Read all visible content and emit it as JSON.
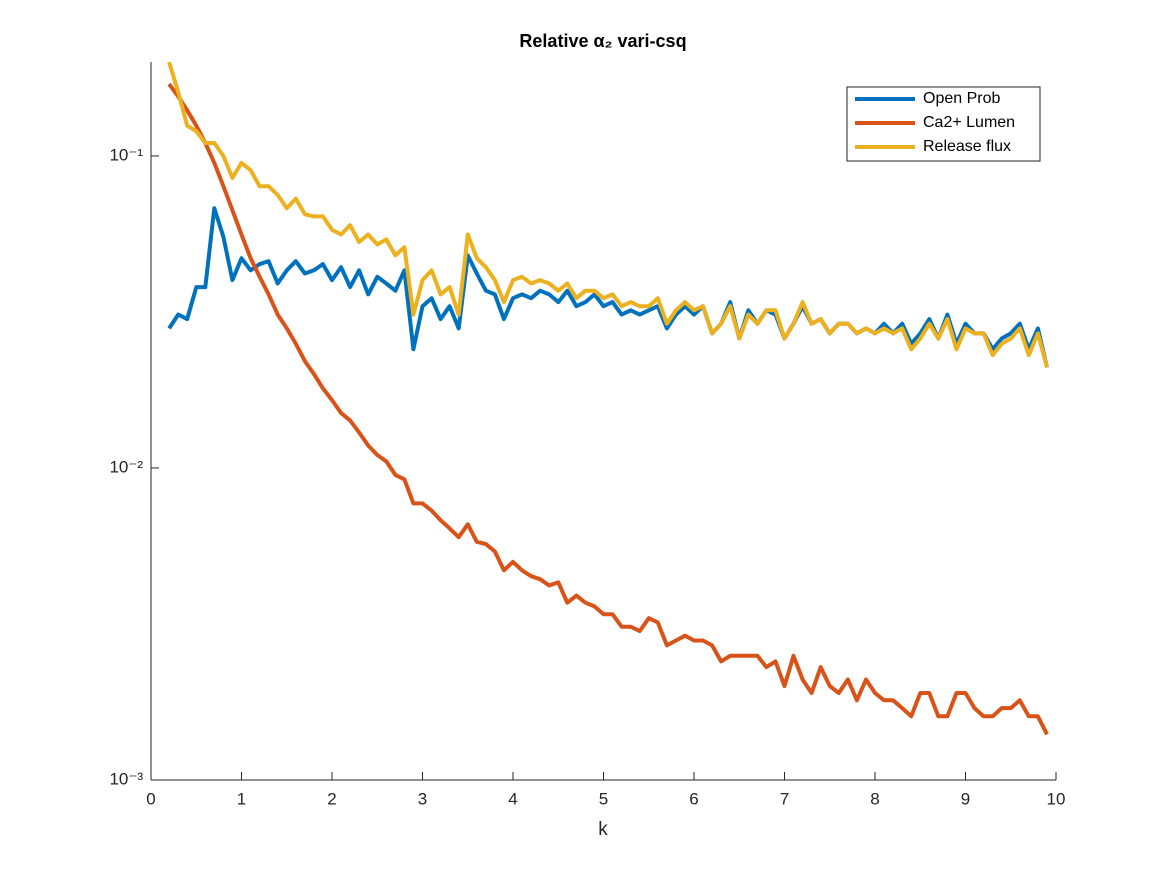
{
  "chart_data": {
    "type": "line",
    "title": "Relative α₂ vari-csq",
    "xlabel": "k",
    "x": [
      0.2,
      0.3,
      0.4,
      0.5,
      0.6,
      0.7,
      0.8,
      0.9,
      1.0,
      1.1,
      1.2,
      1.3,
      1.4,
      1.5,
      1.6,
      1.7,
      1.8,
      1.9,
      2.0,
      2.1,
      2.2,
      2.3,
      2.4,
      2.5,
      2.6,
      2.7,
      2.8,
      2.9,
      3.0,
      3.1,
      3.2,
      3.3,
      3.4,
      3.5,
      3.6,
      3.7,
      3.8,
      3.9,
      4.0,
      4.1,
      4.2,
      4.3,
      4.4,
      4.5,
      4.6,
      4.7,
      4.8,
      4.9,
      5.0,
      5.1,
      5.2,
      5.3,
      5.4,
      5.5,
      5.6,
      5.7,
      5.8,
      5.9,
      6.0,
      6.1,
      6.2,
      6.3,
      6.4,
      6.5,
      6.6,
      6.7,
      6.8,
      6.9,
      7.0,
      7.1,
      7.2,
      7.3,
      7.4,
      7.5,
      7.6,
      7.7,
      7.8,
      7.9,
      8.0,
      8.1,
      8.2,
      8.3,
      8.4,
      8.5,
      8.6,
      8.7,
      8.8,
      8.9,
      9.0,
      9.1,
      9.2,
      9.3,
      9.4,
      9.5,
      9.6,
      9.7,
      9.8,
      9.9
    ],
    "series": [
      {
        "name": "Open Prob",
        "color": "#0072BD",
        "values": [
          0.028,
          0.031,
          0.03,
          0.038,
          0.038,
          0.068,
          0.055,
          0.04,
          0.047,
          0.043,
          0.045,
          0.046,
          0.039,
          0.043,
          0.046,
          0.042,
          0.043,
          0.045,
          0.04,
          0.044,
          0.038,
          0.043,
          0.036,
          0.041,
          0.039,
          0.037,
          0.043,
          0.024,
          0.033,
          0.035,
          0.03,
          0.033,
          0.028,
          0.048,
          0.042,
          0.037,
          0.036,
          0.03,
          0.035,
          0.036,
          0.035,
          0.037,
          0.036,
          0.034,
          0.037,
          0.033,
          0.034,
          0.036,
          0.033,
          0.034,
          0.031,
          0.032,
          0.031,
          0.032,
          0.033,
          0.028,
          0.031,
          0.033,
          0.031,
          0.033,
          0.027,
          0.029,
          0.034,
          0.026,
          0.032,
          0.029,
          0.032,
          0.031,
          0.026,
          0.029,
          0.033,
          0.029,
          0.03,
          0.027,
          0.029,
          0.029,
          0.027,
          0.028,
          0.027,
          0.029,
          0.027,
          0.029,
          0.025,
          0.027,
          0.03,
          0.026,
          0.031,
          0.025,
          0.029,
          0.027,
          0.027,
          0.024,
          0.026,
          0.027,
          0.029,
          0.024,
          0.028,
          0.021
        ]
      },
      {
        "name": "Ca2+ Lumen",
        "color": "#D95319",
        "values": [
          0.17,
          0.155,
          0.14,
          0.125,
          0.11,
          0.095,
          0.08,
          0.067,
          0.056,
          0.047,
          0.041,
          0.036,
          0.031,
          0.028,
          0.025,
          0.022,
          0.02,
          0.018,
          0.0165,
          0.015,
          0.0142,
          0.013,
          0.0118,
          0.011,
          0.0105,
          0.0095,
          0.0092,
          0.0077,
          0.0077,
          0.0073,
          0.0068,
          0.0064,
          0.006,
          0.0066,
          0.0058,
          0.0057,
          0.0054,
          0.0047,
          0.005,
          0.0047,
          0.0045,
          0.0044,
          0.0042,
          0.0043,
          0.0037,
          0.0039,
          0.0037,
          0.0036,
          0.0034,
          0.0034,
          0.0031,
          0.0031,
          0.003,
          0.0033,
          0.0032,
          0.0027,
          0.0028,
          0.0029,
          0.0028,
          0.0028,
          0.0027,
          0.0024,
          0.0025,
          0.0025,
          0.0025,
          0.0025,
          0.0023,
          0.0024,
          0.002,
          0.0025,
          0.0021,
          0.0019,
          0.0023,
          0.002,
          0.0019,
          0.0021,
          0.0018,
          0.0021,
          0.0019,
          0.0018,
          0.0018,
          0.0017,
          0.0016,
          0.0019,
          0.0019,
          0.0016,
          0.0016,
          0.0019,
          0.0019,
          0.0017,
          0.0016,
          0.0016,
          0.0017,
          0.0017,
          0.0018,
          0.0016,
          0.0016,
          0.0014
        ]
      },
      {
        "name": "Release flux",
        "color": "#EDB120",
        "values": [
          0.2,
          0.16,
          0.125,
          0.12,
          0.11,
          0.11,
          0.1,
          0.085,
          0.095,
          0.09,
          0.08,
          0.08,
          0.075,
          0.068,
          0.073,
          0.065,
          0.064,
          0.064,
          0.058,
          0.056,
          0.06,
          0.053,
          0.056,
          0.052,
          0.054,
          0.048,
          0.051,
          0.031,
          0.04,
          0.043,
          0.036,
          0.038,
          0.031,
          0.056,
          0.047,
          0.044,
          0.04,
          0.034,
          0.04,
          0.041,
          0.039,
          0.04,
          0.039,
          0.037,
          0.039,
          0.035,
          0.037,
          0.037,
          0.035,
          0.036,
          0.033,
          0.034,
          0.033,
          0.033,
          0.035,
          0.029,
          0.032,
          0.034,
          0.032,
          0.033,
          0.027,
          0.029,
          0.033,
          0.026,
          0.031,
          0.029,
          0.032,
          0.032,
          0.026,
          0.029,
          0.034,
          0.029,
          0.03,
          0.027,
          0.029,
          0.029,
          0.027,
          0.028,
          0.027,
          0.028,
          0.027,
          0.028,
          0.024,
          0.026,
          0.029,
          0.026,
          0.03,
          0.024,
          0.028,
          0.027,
          0.027,
          0.023,
          0.025,
          0.026,
          0.028,
          0.023,
          0.027,
          0.021
        ]
      }
    ],
    "xlim": [
      0,
      10
    ],
    "xticks": [
      0,
      1,
      2,
      3,
      4,
      5,
      6,
      7,
      8,
      9,
      10
    ],
    "ylim": [
      0.001,
      0.2
    ],
    "log_y": true,
    "yticks": [
      {
        "value": 0.001,
        "label": "10⁻³"
      },
      {
        "value": 0.01,
        "label": "10⁻²"
      },
      {
        "value": 0.1,
        "label": "10⁻¹"
      }
    ],
    "legend": "upper right"
  }
}
